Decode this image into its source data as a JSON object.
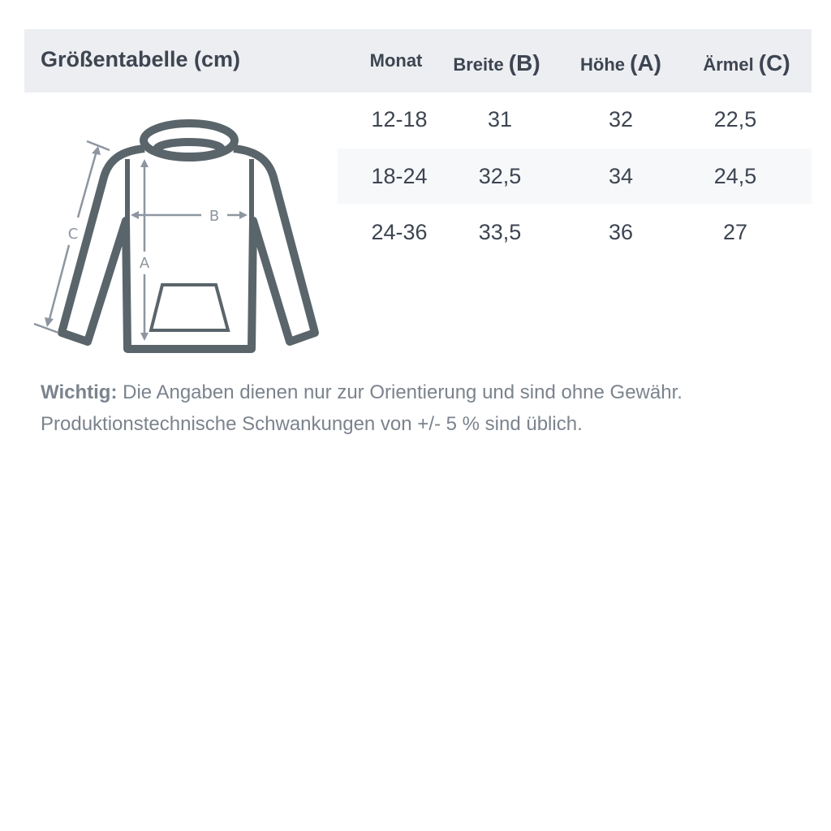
{
  "title": "Größentabelle (cm)",
  "columns": [
    {
      "label": "Monat",
      "letter": ""
    },
    {
      "label": "Breite",
      "letter": "(B)"
    },
    {
      "label": "Höhe",
      "letter": "(A)"
    },
    {
      "label": "Ärmel",
      "letter": "(C)"
    }
  ],
  "rows": [
    [
      "12-18",
      "31",
      "32",
      "22,5"
    ],
    [
      "18-24",
      "32,5",
      "34",
      "24,5"
    ],
    [
      "24-36",
      "33,5",
      "36",
      "27"
    ]
  ],
  "diagram": {
    "label_a": "A",
    "label_b": "B",
    "label_c": "C"
  },
  "note": {
    "bold": "Wichtig:",
    "line1": " Die Angaben dienen nur zur Orientierung und sind ohne Gewähr.",
    "line2": "Produktionstechnische Schwankungen von +/- 5 % sind üblich."
  },
  "colors": {
    "header_bg": "#eceef2",
    "text": "#3d4551",
    "outline": "#5a656b",
    "stripe": "#f7f8fa"
  }
}
